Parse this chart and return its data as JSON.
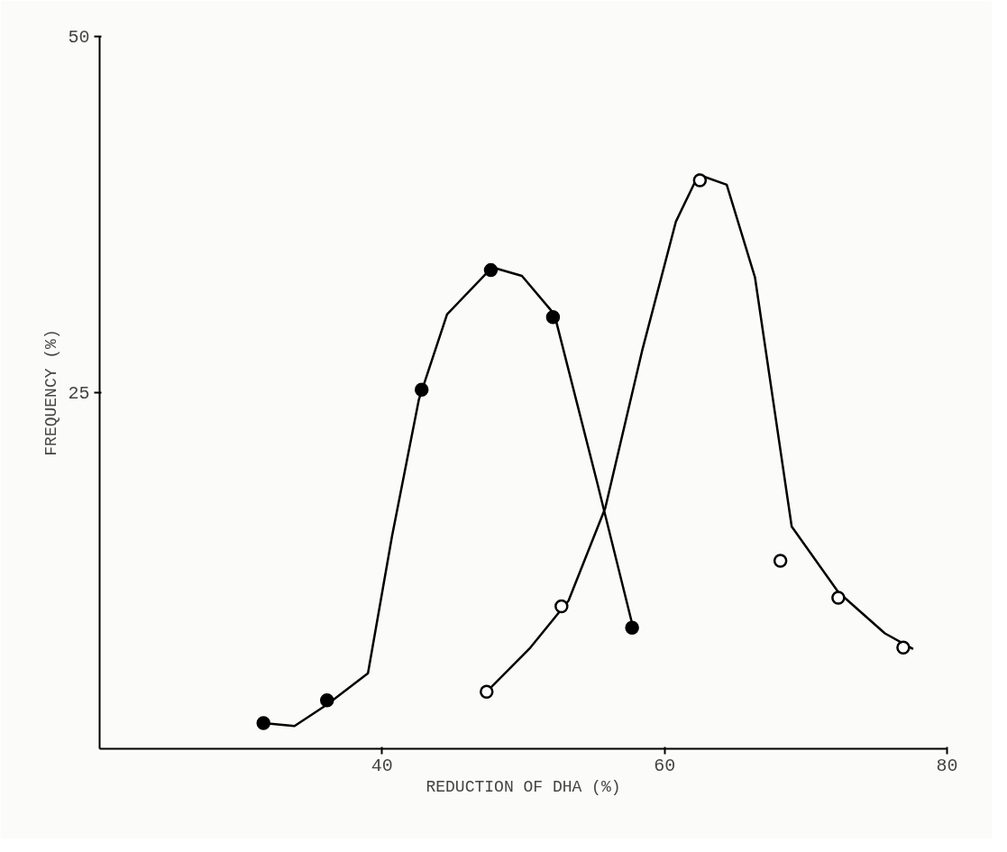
{
  "chart_data": {
    "type": "line",
    "xlabel": "REDUCTION OF DHA (%)",
    "ylabel": "FREQUENCY (%)",
    "xlim": [
      20,
      80
    ],
    "ylim": [
      0,
      50
    ],
    "xticks": [
      40,
      60,
      80
    ],
    "yticks": [
      25,
      50
    ],
    "grid": false,
    "series": [
      {
        "color": "#000000",
        "marker": "none",
        "x": [
          31.6,
          33.8,
          36.1,
          39.0,
          40.7,
          42.6,
          44.6,
          47.8,
          49.9,
          52.2,
          55.2,
          57.7
        ],
        "values": [
          1.8,
          1.6,
          3.1,
          5.3,
          14.9,
          24.5,
          30.5,
          33.8,
          33.2,
          30.5,
          18.8,
          8.8
        ]
      },
      {
        "color": "#000000",
        "marker": "none",
        "x": [
          47.4,
          50.5,
          53.2,
          55.8,
          58.4,
          60.8,
          62.4,
          64.4,
          66.4,
          69.0,
          72.3,
          75.6,
          77.6
        ],
        "values": [
          4.0,
          7.1,
          10.4,
          16.9,
          27.9,
          37.0,
          40.3,
          39.6,
          33.1,
          15.6,
          11.0,
          8.1,
          7.0
        ]
      },
      {
        "type": "scatter",
        "marker": "circle",
        "color": "#000000",
        "x": [
          31.6,
          36.1,
          42.8,
          47.7,
          52.1,
          57.7
        ],
        "values": [
          1.8,
          3.4,
          25.2,
          33.6,
          30.3,
          8.5
        ]
      },
      {
        "type": "scatter",
        "marker": "circle",
        "color": "#ffffff",
        "x": [
          47.4,
          52.7,
          62.5,
          68.2,
          72.3,
          76.9
        ],
        "values": [
          4.0,
          10.0,
          39.9,
          13.2,
          10.6,
          7.1
        ]
      }
    ]
  }
}
